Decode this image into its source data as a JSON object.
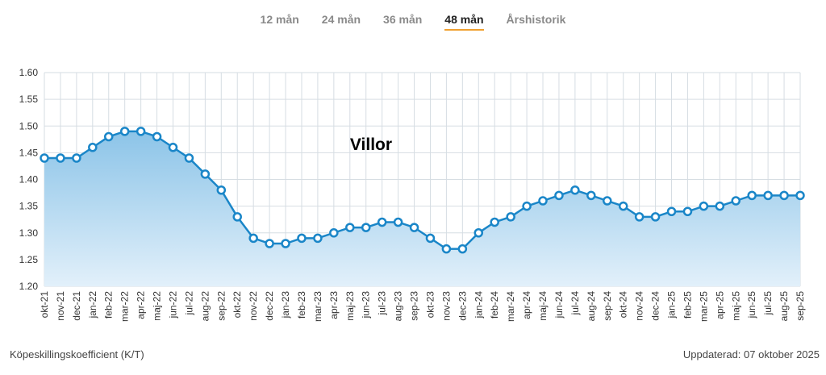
{
  "tabs": [
    {
      "label": "12 mån",
      "active": false
    },
    {
      "label": "24 mån",
      "active": false
    },
    {
      "label": "36 mån",
      "active": false
    },
    {
      "label": "48 mån",
      "active": true
    },
    {
      "label": "Årshistorik",
      "active": false
    }
  ],
  "footer": {
    "left": "Köpeskillingskoefficient (K/T)",
    "right": "Uppdaterad: 07 oktober 2025"
  },
  "colors": {
    "line": "#1a86c8",
    "fill_top": "#8cc4e8",
    "fill_bottom": "#e2f0fa",
    "grid": "#d6dde3",
    "accent": "#f0a030"
  },
  "chart_data": {
    "type": "area",
    "title": "Villor",
    "xlabel": "",
    "ylabel": "",
    "ylim": [
      1.2,
      1.6
    ],
    "yticks": [
      "1.20",
      "1.25",
      "1.30",
      "1.35",
      "1.40",
      "1.45",
      "1.50",
      "1.55",
      "1.60"
    ],
    "grid": true,
    "categories": [
      "okt-21",
      "nov-21",
      "dec-21",
      "jan-22",
      "feb-22",
      "mar-22",
      "apr-22",
      "maj-22",
      "jun-22",
      "jul-22",
      "aug-22",
      "sep-22",
      "okt-22",
      "nov-22",
      "dec-22",
      "jan-23",
      "feb-23",
      "mar-23",
      "apr-23",
      "maj-23",
      "jun-23",
      "jul-23",
      "aug-23",
      "sep-23",
      "okt-23",
      "nov-23",
      "dec-23",
      "jan-24",
      "feb-24",
      "mar-24",
      "apr-24",
      "maj-24",
      "jun-24",
      "jul-24",
      "aug-24",
      "sep-24",
      "okt-24",
      "nov-24",
      "dec-24",
      "jan-25",
      "feb-25",
      "mar-25",
      "apr-25",
      "maj-25",
      "jun-25",
      "jul-25",
      "aug-25",
      "sep-25"
    ],
    "series": [
      {
        "values": [
          1.44,
          1.44,
          1.44,
          1.46,
          1.48,
          1.49,
          1.49,
          1.48,
          1.46,
          1.44,
          1.41,
          1.38,
          1.33,
          1.29,
          1.28,
          1.28,
          1.29,
          1.29,
          1.3,
          1.31,
          1.31,
          1.32,
          1.32,
          1.31,
          1.29,
          1.27,
          1.27,
          1.3,
          1.32,
          1.33,
          1.35,
          1.36,
          1.37,
          1.38,
          1.37,
          1.36,
          1.35,
          1.33,
          1.33,
          1.34,
          1.34,
          1.35,
          1.35,
          1.36,
          1.37,
          1.37,
          1.37,
          1.37
        ]
      }
    ]
  }
}
